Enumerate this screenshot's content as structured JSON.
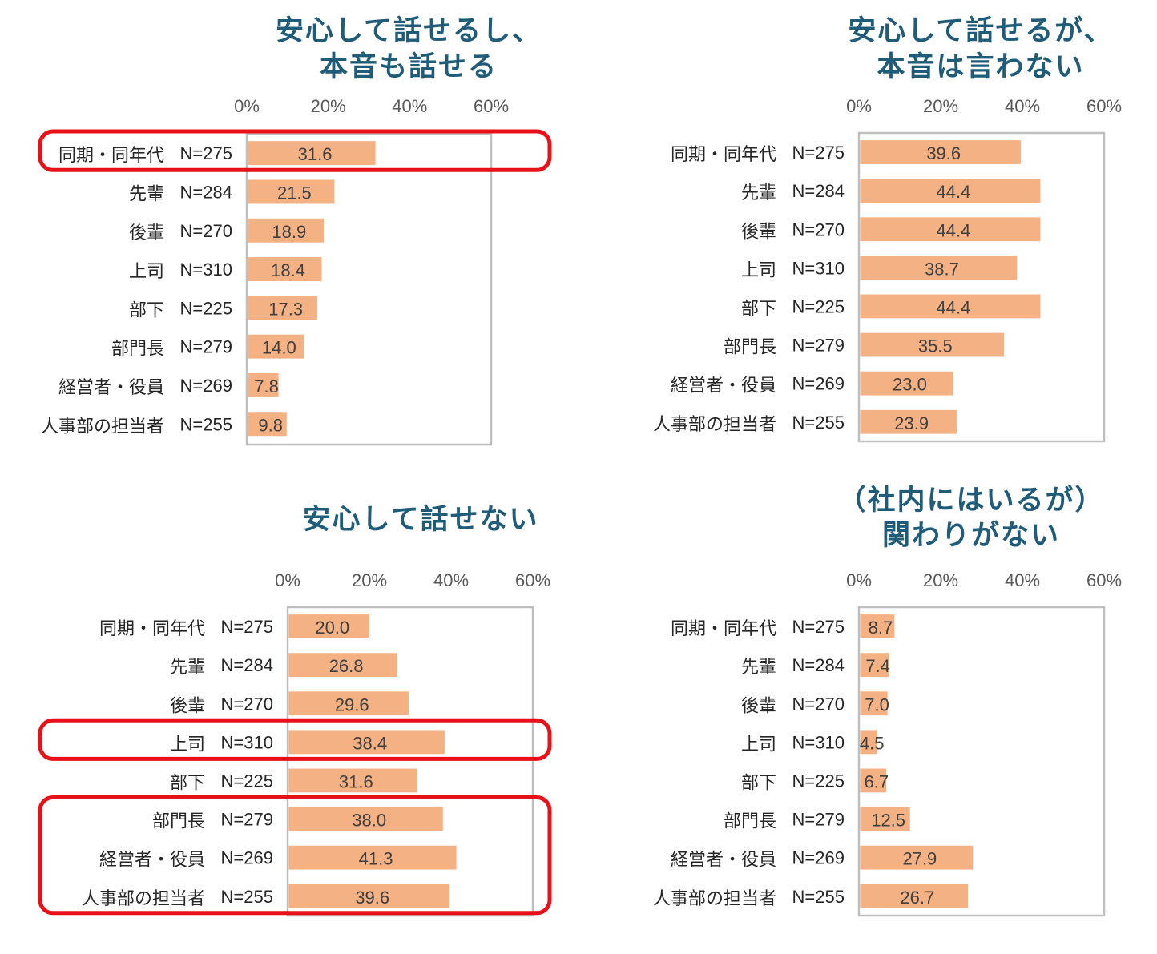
{
  "colors": {
    "bar": "#f4b183",
    "frame": "#bfbfbf",
    "title": "#1f5c7a",
    "highlight": "#e8111a"
  },
  "chart_data": [
    {
      "type": "bar",
      "orientation": "horizontal",
      "title_lines": [
        "安心して話せるし、",
        "本音も話せる"
      ],
      "xlim": [
        0,
        60
      ],
      "ticks": [
        "0%",
        "20%",
        "40%",
        "60%"
      ],
      "categories": [
        "同期・同年代",
        "先輩",
        "後輩",
        "上司",
        "部下",
        "部門長",
        "経営者・役員",
        "人事部の担当者"
      ],
      "n_labels": [
        "N=275",
        "N=284",
        "N=270",
        "N=310",
        "N=225",
        "N=279",
        "N=269",
        "N=255"
      ],
      "values": [
        31.6,
        21.5,
        18.9,
        18.4,
        17.3,
        14.0,
        7.8,
        9.8
      ],
      "value_labels": [
        "31.6",
        "21.5",
        "18.9",
        "18.4",
        "17.3",
        "14.0",
        "7.8",
        "9.8"
      ],
      "highlighted_rows": [
        [
          0,
          0
        ]
      ]
    },
    {
      "type": "bar",
      "orientation": "horizontal",
      "title_lines": [
        "安心して話せるが、",
        "本音は言わない"
      ],
      "xlim": [
        0,
        60
      ],
      "ticks": [
        "0%",
        "20%",
        "40%",
        "60%"
      ],
      "categories": [
        "同期・同年代",
        "先輩",
        "後輩",
        "上司",
        "部下",
        "部門長",
        "経営者・役員",
        "人事部の担当者"
      ],
      "n_labels": [
        "N=275",
        "N=284",
        "N=270",
        "N=310",
        "N=225",
        "N=279",
        "N=269",
        "N=255"
      ],
      "values": [
        39.6,
        44.4,
        44.4,
        38.7,
        44.4,
        35.5,
        23.0,
        23.9
      ],
      "value_labels": [
        "39.6",
        "44.4",
        "44.4",
        "38.7",
        "44.4",
        "35.5",
        "23.0",
        "23.9"
      ],
      "highlighted_rows": []
    },
    {
      "type": "bar",
      "orientation": "horizontal",
      "title_lines": [
        "安心して話せない"
      ],
      "xlim": [
        0,
        60
      ],
      "ticks": [
        "0%",
        "20%",
        "40%",
        "60%"
      ],
      "categories": [
        "同期・同年代",
        "先輩",
        "後輩",
        "上司",
        "部下",
        "部門長",
        "経営者・役員",
        "人事部の担当者"
      ],
      "n_labels": [
        "N=275",
        "N=284",
        "N=270",
        "N=310",
        "N=225",
        "N=279",
        "N=269",
        "N=255"
      ],
      "values": [
        20.0,
        26.8,
        29.6,
        38.4,
        31.6,
        38.0,
        41.3,
        39.6
      ],
      "value_labels": [
        "20.0",
        "26.8",
        "29.6",
        "38.4",
        "31.6",
        "38.0",
        "41.3",
        "39.6"
      ],
      "highlighted_rows": [
        [
          3,
          3
        ],
        [
          5,
          7
        ]
      ]
    },
    {
      "type": "bar",
      "orientation": "horizontal",
      "title_lines": [
        "（社内にはいるが）",
        "関わりがない"
      ],
      "xlim": [
        0,
        60
      ],
      "ticks": [
        "0%",
        "20%",
        "40%",
        "60%"
      ],
      "categories": [
        "同期・同年代",
        "先輩",
        "後輩",
        "上司",
        "部下",
        "部門長",
        "経営者・役員",
        "人事部の担当者"
      ],
      "n_labels": [
        "N=275",
        "N=284",
        "N=270",
        "N=310",
        "N=225",
        "N=279",
        "N=269",
        "N=255"
      ],
      "values": [
        8.7,
        7.4,
        7.0,
        4.5,
        6.7,
        12.5,
        27.9,
        26.7
      ],
      "value_labels": [
        "8.7",
        "7.4",
        "7.0",
        "4.5",
        "6.7",
        "12.5",
        "27.9",
        "26.7"
      ],
      "highlighted_rows": []
    }
  ]
}
